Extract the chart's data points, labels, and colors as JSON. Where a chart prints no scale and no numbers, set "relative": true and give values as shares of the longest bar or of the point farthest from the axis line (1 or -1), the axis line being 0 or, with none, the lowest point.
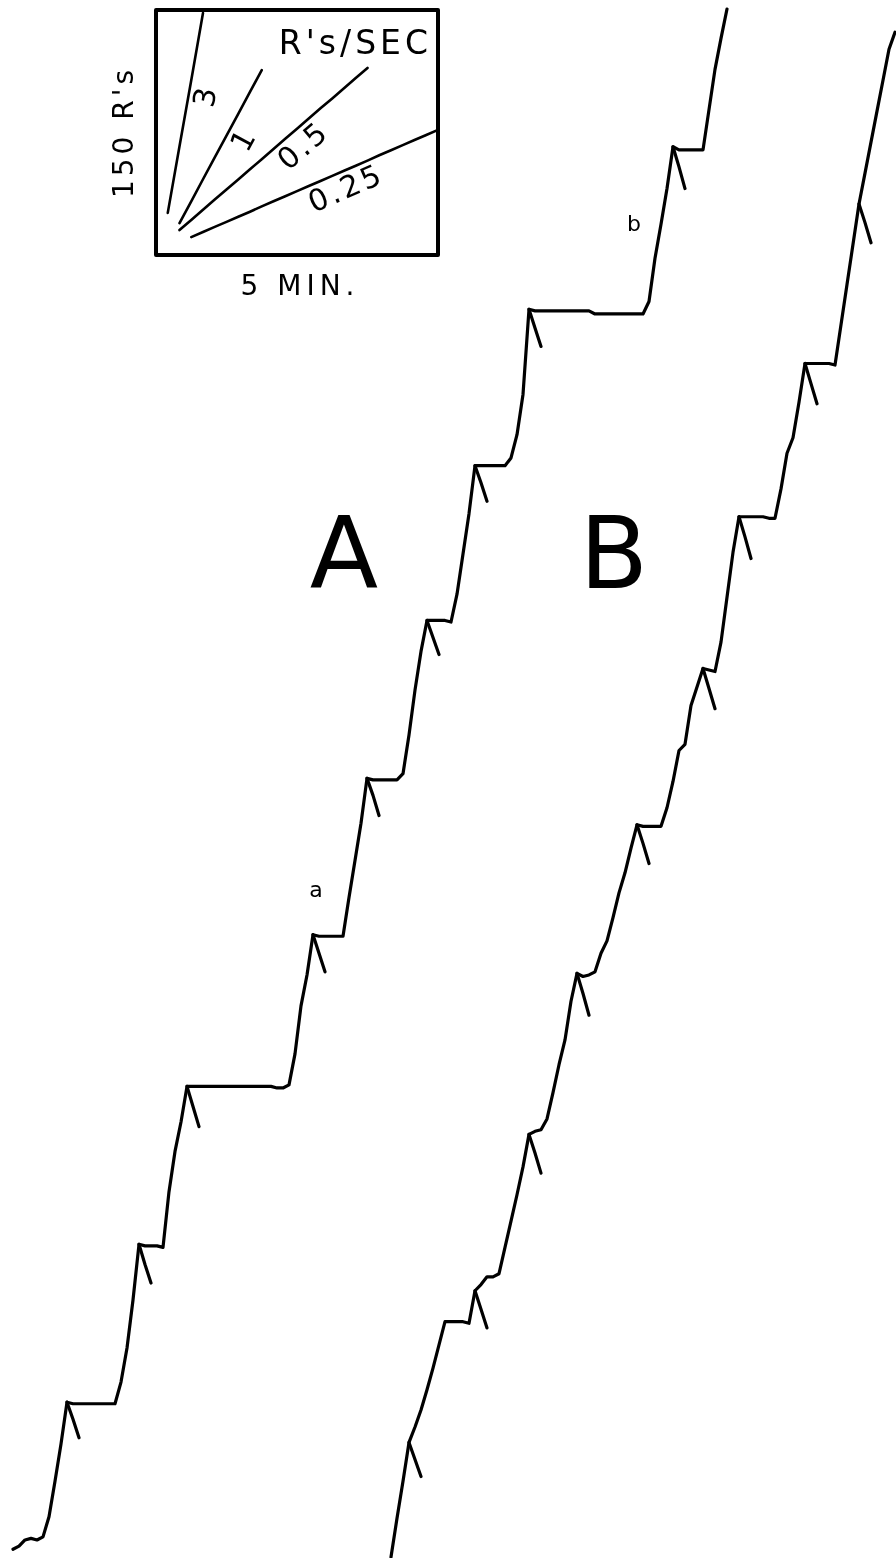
{
  "chart_data": [
    {
      "type": "line",
      "relative": true,
      "xlabel": "5 MIN.",
      "ylabel": "150 R's",
      "annotations": [
        "R's/SEC"
      ],
      "marker": "none",
      "categories": [
        null,
        null,
        null,
        null,
        null,
        null,
        null,
        null,
        null,
        null,
        null,
        null,
        null,
        null,
        null,
        null,
        null,
        null,
        null,
        null,
        null,
        null,
        null,
        null,
        null
      ],
      "series": [
        {
          "name": "3",
          "color": "#000000",
          "values": [
            null,
            0.174,
            0.449,
            0.722,
            1.0,
            null,
            null,
            null,
            null,
            null,
            null,
            null,
            null,
            null,
            null,
            null,
            null,
            null,
            null,
            null,
            null,
            null,
            null,
            null,
            null
          ]
        },
        {
          "name": "1",
          "color": "#000000",
          "values": [
            null,
            null,
            0.132,
            0.222,
            0.313,
            0.403,
            0.493,
            0.583,
            0.674,
            0.764,
            null,
            null,
            null,
            null,
            null,
            null,
            null,
            null,
            null,
            null,
            null,
            null,
            null,
            null,
            null
          ]
        },
        {
          "name": "0.5",
          "color": "#000000",
          "values": [
            null,
            null,
            0.103,
            0.145,
            0.187,
            0.229,
            0.271,
            0.312,
            0.354,
            0.396,
            0.438,
            0.48,
            0.522,
            0.564,
            0.606,
            0.647,
            0.689,
            0.731,
            0.773,
            null,
            null,
            null,
            null,
            null,
            null
          ]
        },
        {
          "name": "0.25",
          "color": "#000000",
          "values": [
            null,
            null,
            null,
            0.074,
            0.095,
            0.116,
            0.137,
            0.158,
            0.179,
            0.201,
            0.222,
            0.243,
            0.264,
            0.285,
            0.306,
            0.327,
            0.348,
            0.369,
            0.39,
            0.412,
            0.433,
            0.454,
            0.475,
            0.496,
            0.517
          ]
        }
      ]
    },
    {
      "type": "line",
      "relative": true,
      "marker": "none",
      "categories": [
        null,
        null,
        null,
        null,
        null,
        null,
        null,
        null,
        null,
        null,
        null,
        null,
        null,
        null,
        null,
        null,
        null,
        null,
        null,
        null,
        null,
        null,
        null,
        null,
        null,
        null,
        null,
        null,
        null,
        null,
        null,
        null,
        null,
        null,
        null,
        null,
        null,
        null,
        null,
        null,
        null,
        null,
        null,
        null,
        null,
        null,
        null,
        null,
        null,
        null,
        null,
        null,
        null,
        null,
        null,
        null,
        null,
        null,
        null,
        null,
        null,
        null,
        null,
        null,
        null,
        null,
        null,
        null,
        null,
        null,
        null,
        null,
        null,
        null,
        null,
        null,
        null,
        null,
        null,
        null,
        null,
        null,
        null,
        null,
        null,
        null,
        null,
        null,
        null,
        null,
        null,
        null,
        null,
        null,
        null,
        null,
        null,
        null,
        null,
        null,
        null,
        null,
        null,
        null,
        null,
        null,
        null,
        null,
        null,
        null,
        null,
        null,
        null,
        null,
        null,
        null,
        null,
        null,
        null,
        null,
        null,
        null,
        null,
        null,
        null,
        null,
        null,
        null,
        null,
        null,
        null,
        null,
        null,
        null,
        null,
        null,
        null,
        null,
        null,
        null,
        null,
        null,
        null,
        null,
        null,
        null,
        null,
        null
      ],
      "annotations": [
        "a",
        "b"
      ],
      "series": [
        {
          "name": "A",
          "color": "#000000",
          "values": [
            0.005,
            0.007,
            0.011,
            0.012,
            0.011,
            0.013,
            0.026,
            0.049,
            0.073,
            0.1,
            0.099,
            0.099,
            0.099,
            0.099,
            0.099,
            0.099,
            0.099,
            0.099,
            0.113,
            0.135,
            0.166,
            0.202,
            0.201,
            0.201,
            0.201,
            0.2,
            0.236,
            0.262,
            0.281,
            0.304,
            0.304,
            0.304,
            0.304,
            0.304,
            0.304,
            0.304,
            0.304,
            0.304,
            0.304,
            0.304,
            0.304,
            0.304,
            0.304,
            0.304,
            0.303,
            0.303,
            0.305,
            0.325,
            0.356,
            0.376,
            0.402,
            0.401,
            0.401,
            0.401,
            0.401,
            0.401,
            0.426,
            0.45,
            0.474,
            0.503,
            0.502,
            0.502,
            0.502,
            0.502,
            0.502,
            0.506,
            0.531,
            0.56,
            0.585,
            0.605,
            0.605,
            0.605,
            0.605,
            0.604,
            0.622,
            0.648,
            0.674,
            0.705,
            0.705,
            0.705,
            0.705,
            0.705,
            0.705,
            0.71,
            0.725,
            0.751,
            0.806,
            0.805,
            0.805,
            0.805,
            0.805,
            0.805,
            0.805,
            0.805,
            0.805,
            0.805,
            0.805,
            0.803,
            0.803,
            0.803,
            0.803,
            0.803,
            0.803,
            0.803,
            0.803,
            0.803,
            0.811,
            0.839,
            0.861,
            0.884,
            0.911,
            0.909,
            0.909,
            0.909,
            0.909,
            0.909,
            0.935,
            0.961,
            0.981,
            1.0,
            null,
            null,
            null,
            null,
            null,
            null,
            null,
            null,
            null,
            null,
            null,
            null,
            null,
            null,
            null,
            null,
            null,
            null,
            null,
            null,
            null,
            null,
            null,
            null,
            null,
            null,
            null,
            null
          ]
        },
        {
          "name": "B",
          "color": "#000000",
          "values": [
            null,
            null,
            null,
            null,
            null,
            null,
            null,
            null,
            null,
            null,
            null,
            null,
            null,
            null,
            null,
            null,
            null,
            null,
            null,
            null,
            null,
            null,
            null,
            null,
            null,
            null,
            null,
            null,
            null,
            null,
            null,
            null,
            null,
            null,
            null,
            null,
            null,
            null,
            null,
            null,
            null,
            null,
            null,
            null,
            null,
            null,
            null,
            null,
            null,
            null,
            null,
            null,
            null,
            null,
            null,
            null,
            null,
            null,
            null,
            null,
            null,
            null,
            null,
            0.0,
            0.025,
            0.049,
            0.074,
            0.084,
            0.095,
            0.108,
            0.122,
            0.137,
            0.152,
            0.152,
            0.152,
            0.152,
            0.151,
            0.172,
            0.176,
            0.181,
            0.181,
            0.183,
            0.2,
            0.217,
            0.234,
            0.252,
            0.273,
            0.275,
            0.276,
            0.283,
            0.3,
            0.318,
            0.334,
            0.359,
            0.377,
            0.375,
            0.376,
            0.378,
            0.39,
            0.398,
            0.413,
            0.429,
            0.442,
            0.458,
            0.473,
            0.472,
            0.472,
            0.472,
            0.472,
            0.484,
            0.501,
            0.521,
            0.525,
            0.55,
            0.562,
            0.574,
            0.573,
            0.572,
            0.591,
            0.62,
            0.649,
            0.672,
            0.672,
            0.672,
            0.672,
            0.672,
            0.671,
            0.671,
            0.69,
            0.713,
            0.723,
            0.746,
            0.771,
            0.771,
            0.771,
            0.771,
            0.771,
            0.77,
            0.796,
            0.822,
            0.848,
            0.874,
            0.894,
            0.914,
            0.934,
            0.954,
            0.974,
            0.985
          ]
        },
        {
          "color": "#000000",
          "values": [
            null,
            null,
            null,
            null,
            null,
            null,
            null,
            null,
            null,
            0.1,
            0.089,
            0.077,
            null,
            null,
            null,
            null,
            null,
            null,
            null,
            null,
            null,
            0.202,
            0.189,
            0.177,
            null,
            null,
            null,
            null,
            null,
            0.304,
            0.291,
            0.278,
            null,
            null,
            null,
            null,
            null,
            null,
            null,
            null,
            null,
            null,
            null,
            null,
            null,
            null,
            null,
            null,
            null,
            null,
            0.402,
            0.39,
            0.378,
            null,
            null,
            null,
            null,
            null,
            null,
            0.503,
            0.492,
            0.479,
            null,
            null,
            null,
            null,
            null,
            null,
            null,
            0.605,
            0.594,
            0.583,
            null,
            null,
            null,
            null,
            null,
            0.705,
            0.694,
            0.682,
            null,
            null,
            null,
            null,
            null,
            null,
            0.806,
            0.794,
            0.782,
            null,
            null,
            null,
            null,
            null,
            null,
            null,
            null,
            null,
            null,
            null,
            null,
            null,
            null,
            null,
            null,
            null,
            null,
            null,
            null,
            null,
            0.911,
            0.898,
            0.884,
            null,
            null,
            null,
            null,
            null,
            null,
            null,
            null,
            null,
            null,
            null,
            null,
            null,
            null,
            null,
            null,
            null,
            null,
            null,
            null,
            null,
            null,
            null,
            null,
            null,
            null,
            null,
            null,
            null,
            null,
            null,
            null,
            null,
            null,
            null
          ]
        },
        {
          "color": "#000000",
          "values": [
            null,
            null,
            null,
            null,
            null,
            null,
            null,
            null,
            null,
            null,
            null,
            null,
            null,
            null,
            null,
            null,
            null,
            null,
            null,
            null,
            null,
            null,
            null,
            null,
            null,
            null,
            null,
            null,
            null,
            null,
            null,
            null,
            null,
            null,
            null,
            null,
            null,
            null,
            null,
            null,
            null,
            null,
            null,
            null,
            null,
            null,
            null,
            null,
            null,
            null,
            null,
            null,
            null,
            null,
            null,
            null,
            null,
            null,
            null,
            null,
            null,
            null,
            null,
            null,
            null,
            null,
            0.074,
            0.063,
            0.052,
            null,
            null,
            null,
            null,
            null,
            null,
            null,
            null,
            0.172,
            0.16,
            0.148,
            null,
            null,
            null,
            null,
            null,
            null,
            0.273,
            0.261,
            0.248,
            null,
            null,
            null,
            null,
            null,
            0.377,
            0.364,
            0.35,
            null,
            null,
            null,
            null,
            null,
            null,
            null,
            0.473,
            0.461,
            0.448,
            null,
            null,
            null,
            null,
            null,
            null,
            null,
            null,
            0.574,
            0.561,
            0.548,
            null,
            null,
            null,
            0.672,
            0.659,
            0.645,
            null,
            null,
            null,
            null,
            null,
            null,
            null,
            null,
            0.771,
            0.758,
            0.745,
            null,
            null,
            null,
            null,
            null,
            null,
            0.874,
            0.862,
            0.849,
            null,
            null,
            null,
            null
          ]
        }
      ]
    }
  ]
}
